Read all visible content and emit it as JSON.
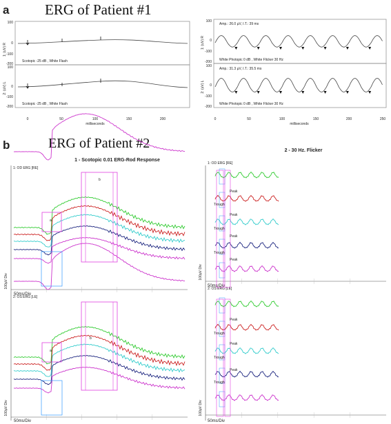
{
  "panel_a": {
    "letter": "a",
    "title": "ERG of Patient #1",
    "left": {
      "xlabel": "milliseconds",
      "x_ticks": [
        "0",
        "50",
        "100",
        "150",
        "200"
      ],
      "y_ticks": [
        "100",
        "0",
        "-100",
        "-200"
      ],
      "top_ylabel": "1: (uV) R",
      "bottom_ylabel": "2: (uV) L",
      "top_caption": "Scotopic  -25 dB , White Flash",
      "bottom_caption": "Scotopic  -25 dB , White Flash"
    },
    "right": {
      "xlabel": "milliseconds",
      "x_ticks": [
        "0",
        "50",
        "100",
        "150",
        "200",
        "250"
      ],
      "y_ticks": [
        "100",
        "0",
        "-100",
        "-200"
      ],
      "top_ylabel": "1: (uV) R",
      "bottom_ylabel": "2: (uV) L",
      "top_amp": "Amp.: 26.0 µV, I.T.:  39 ms",
      "bottom_amp": "Amp.: 31.3 µV, I.T.:  35.5 ms",
      "top_caption": "White Photopic  0 dB , White Flicker 30 Hz",
      "bottom_caption": "White Photopic  0 dB , White Flicker 30 Hz"
    }
  },
  "panel_b": {
    "letter": "b",
    "title": "ERG of Patient #2",
    "left_title": "1 - Scotopic 0.01 ERG-Rod Response",
    "right_title": "2 - 30 Hz. Flicker",
    "top_od_label": "1: OD ERG [RE]",
    "bottom_os_label": "2: OS ERG [LE]",
    "right_top_label": "1: OD ERG [RE]",
    "right_bottom_label": "2: OS ERG [LE]",
    "xdiv": "50ms/Div",
    "ydiv": "100µV Div",
    "peak": "Peak",
    "trough": "Trough",
    "wave_a": "a",
    "wave_b": "b"
  },
  "chart_data": [
    {
      "type": "line",
      "title": "ERG of Patient #1",
      "subtitle": "Scotopic -25 dB, White Flash",
      "xlabel": "milliseconds",
      "ylabel": "1: (uV) R / 2: (uV) L",
      "xlim": [
        -10,
        240
      ],
      "ylim": [
        -200,
        100
      ],
      "series": [
        {
          "name": "1: (uV) R",
          "x": [
            0,
            25,
            50,
            75,
            100,
            125,
            150,
            200,
            240
          ],
          "y": [
            0,
            2,
            5,
            12,
            15,
            12,
            8,
            3,
            0
          ]
        },
        {
          "name": "2: (uV) L",
          "x": [
            0,
            25,
            50,
            75,
            100,
            125,
            150,
            200,
            240
          ],
          "y": [
            0,
            3,
            8,
            20,
            28,
            22,
            12,
            4,
            0
          ]
        }
      ]
    },
    {
      "type": "line",
      "title": "ERG of Patient #1",
      "subtitle": "White Photopic 0 dB, White Flicker 30 Hz",
      "xlabel": "milliseconds",
      "ylabel": "1: (uV) R / 2: (uV) L",
      "xlim": [
        0,
        250
      ],
      "ylim": [
        -200,
        100
      ],
      "annotations": [
        "Amp.: 26.0 µV, I.T.: 39 ms",
        "Amp.: 31.3 µV, I.T.: 35.5 ms"
      ],
      "series": [
        {
          "name": "1: (uV) R",
          "period_ms": 33.3,
          "amplitude_uV": 26.0,
          "implicit_time_ms": 39
        },
        {
          "name": "2: (uV) L",
          "period_ms": 33.3,
          "amplitude_uV": 31.3,
          "implicit_time_ms": 35.5
        }
      ]
    },
    {
      "type": "line",
      "title": "1 - Scotopic 0.01 ERG-Rod Response",
      "xlabel": "50ms/Div",
      "ylabel": "100µV Div",
      "series": [
        {
          "name": "1: OD ERG [RE]",
          "color": "#cc33cc"
        },
        {
          "name": "2: OS ERG [LE]",
          "color": "#cc33cc"
        }
      ]
    },
    {
      "type": "line",
      "title": "2 - 30 Hz. Flicker",
      "xlabel": "50ms/Div",
      "ylabel": "100µV Div",
      "series": [
        {
          "name": "1: OD ERG [RE]"
        },
        {
          "name": "2: OS ERG [LE]"
        }
      ]
    }
  ]
}
